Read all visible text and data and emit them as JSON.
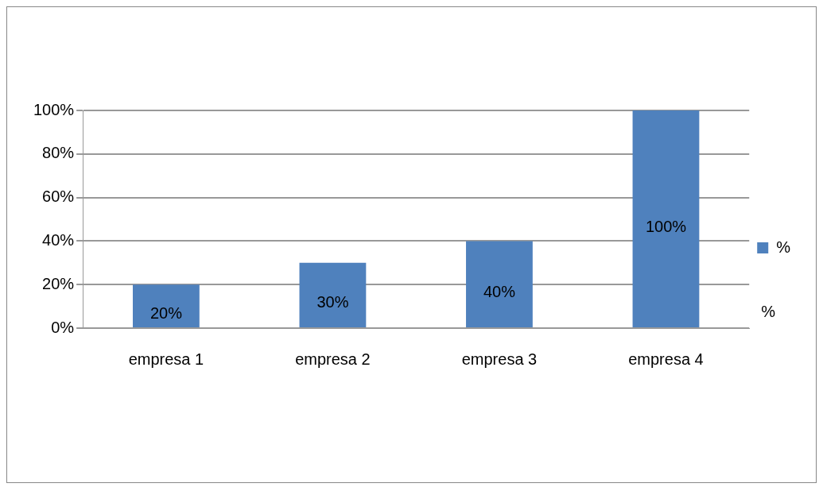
{
  "chart_data": {
    "type": "bar",
    "categories": [
      "empresa 1",
      "empresa 2",
      "empresa 3",
      "empresa 4"
    ],
    "series": [
      {
        "name": "%",
        "color": "#4f81bd",
        "values": [
          20,
          30,
          40,
          100
        ],
        "value_labels": [
          "20%",
          "30%",
          "40%",
          "100%"
        ]
      }
    ],
    "ylim": [
      0,
      100
    ],
    "yticks": [
      {
        "value": 0,
        "label": "0%"
      },
      {
        "value": 20,
        "label": "20%"
      },
      {
        "value": 40,
        "label": "40%"
      },
      {
        "value": 60,
        "label": "60%"
      },
      {
        "value": 80,
        "label": "80%"
      },
      {
        "value": 100,
        "label": "100%"
      }
    ],
    "grid": "y",
    "legend": "right",
    "annotations": [
      "%"
    ]
  }
}
